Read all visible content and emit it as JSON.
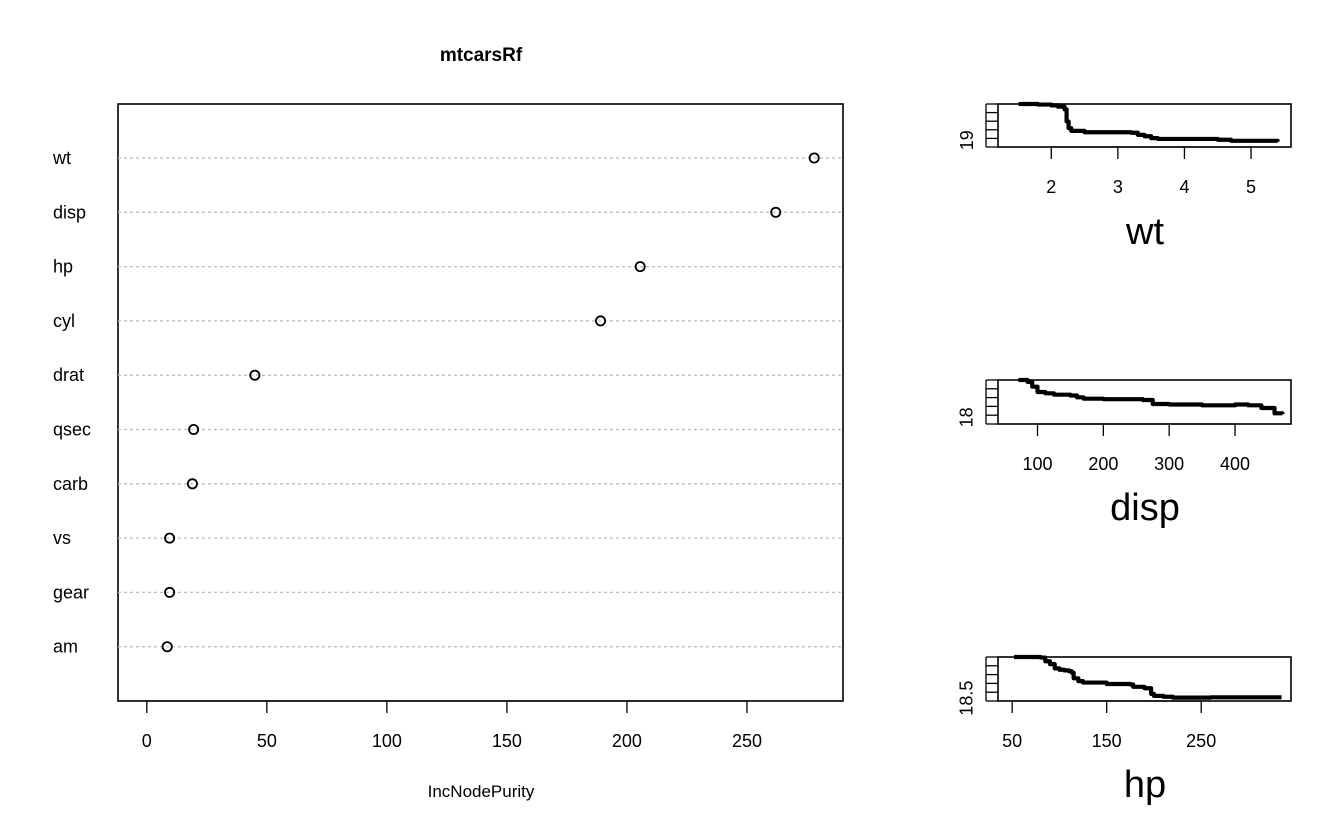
{
  "chart_data": [
    {
      "type": "scatter",
      "title": "mtcarsRf",
      "xlabel": "IncNodePurity",
      "ylabel": "",
      "xlim": [
        -12,
        290
      ],
      "xticks": [
        0,
        50,
        100,
        150,
        200,
        250
      ],
      "categories": [
        "wt",
        "disp",
        "hp",
        "cyl",
        "drat",
        "qsec",
        "carb",
        "vs",
        "gear",
        "am"
      ],
      "values": [
        278,
        262,
        205.5,
        189,
        45,
        19.5,
        19,
        9.5,
        9.5,
        8.5
      ],
      "grid": true
    },
    {
      "type": "line",
      "title": "",
      "xlabel": "wt",
      "ylabel": "",
      "xlim": [
        1.2,
        5.6
      ],
      "ylim": [
        18.75,
        20.35
      ],
      "xticks": [
        2,
        3,
        4,
        5
      ],
      "yticks": [
        19
      ],
      "x": [
        1.51,
        1.6,
        1.8,
        2.0,
        2.1,
        2.2,
        2.23,
        2.26,
        2.3,
        2.5,
        2.8,
        3.2,
        3.3,
        3.4,
        3.5,
        3.6,
        4.0,
        4.5,
        4.7,
        5.0,
        5.4
      ],
      "y": [
        20.35,
        20.35,
        20.33,
        20.3,
        20.25,
        20.15,
        19.7,
        19.45,
        19.35,
        19.3,
        19.3,
        19.28,
        19.2,
        19.15,
        19.08,
        19.05,
        19.05,
        19.02,
        18.98,
        18.98,
        18.95
      ]
    },
    {
      "type": "line",
      "title": "",
      "xlabel": "disp",
      "ylabel": "",
      "xlim": [
        40,
        485
      ],
      "ylim": [
        17.75,
        19.4
      ],
      "xticks": [
        100,
        200,
        300,
        400
      ],
      "yticks": [
        18
      ],
      "x": [
        71,
        85,
        92,
        100,
        112,
        125,
        150,
        160,
        170,
        200,
        260,
        275,
        300,
        350,
        400,
        420,
        440,
        460,
        472
      ],
      "y": [
        19.4,
        19.33,
        19.15,
        18.95,
        18.9,
        18.85,
        18.82,
        18.75,
        18.7,
        18.68,
        18.65,
        18.5,
        18.48,
        18.45,
        18.48,
        18.45,
        18.35,
        18.15,
        18.12
      ]
    },
    {
      "type": "line",
      "title": "",
      "xlabel": "hp",
      "ylabel": "",
      "xlim": [
        35,
        345
      ],
      "ylim": [
        18.4,
        19.95
      ],
      "xticks": [
        50,
        150,
        250
      ],
      "yticks": [
        18.5
      ],
      "x": [
        52,
        70,
        80,
        85,
        90,
        95,
        100,
        105,
        110,
        113,
        115,
        120,
        125,
        150,
        175,
        178,
        190,
        197,
        200,
        210,
        220,
        245,
        260,
        300,
        335
      ],
      "y": [
        19.95,
        19.95,
        19.93,
        19.8,
        19.7,
        19.55,
        19.5,
        19.48,
        19.45,
        19.4,
        19.2,
        19.1,
        19.05,
        19.0,
        18.98,
        18.9,
        18.85,
        18.65,
        18.58,
        18.55,
        18.52,
        18.52,
        18.53,
        18.53,
        18.53
      ]
    }
  ]
}
